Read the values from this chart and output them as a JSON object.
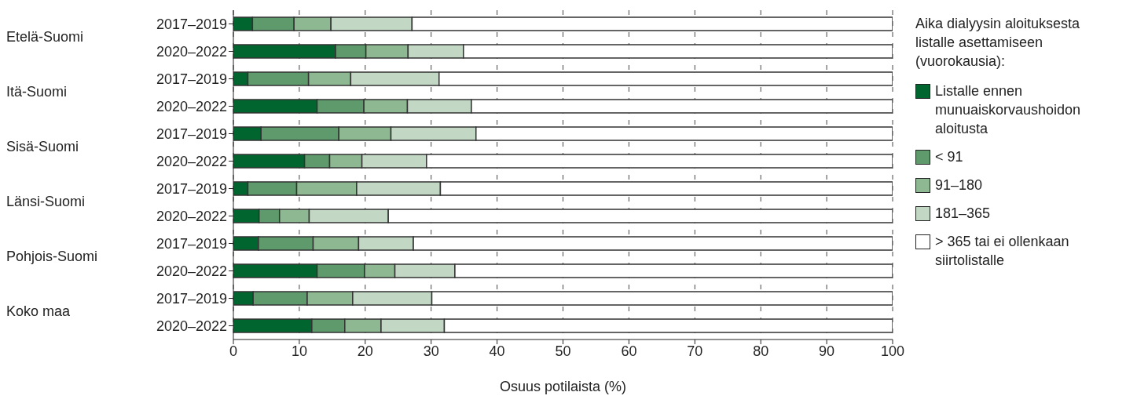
{
  "chart_data": {
    "type": "bar",
    "orientation": "horizontal",
    "stacked": true,
    "categories": [
      "2017–2019",
      "2020–2022",
      "2017–2019",
      "2020–2022",
      "2017–2019",
      "2020–2022",
      "2017–2019",
      "2020–2022",
      "2017–2019",
      "2020–2022",
      "2017–2019",
      "2020–2022"
    ],
    "annotations": [
      "Etelä-Suomi",
      "Itä-Suomi",
      "Sisä-Suomi",
      "Länsi-Suomi",
      "Pohjois-Suomi",
      "Koko maa"
    ],
    "legend_title": "Aika dialyysin aloituksesta listalle asettamiseen (vuorokausia):",
    "series": [
      {
        "name": "Listalle ennen munuaiskorvaushoidon aloitusta",
        "color": "#00652e",
        "values": [
          2.9,
          15.5,
          2.2,
          12.7,
          4.2,
          10.8,
          2.2,
          3.9,
          3.8,
          12.7,
          3.0,
          11.9
        ]
      },
      {
        "name": "< 91",
        "color": "#5e9a6b",
        "values": [
          6.3,
          4.6,
          9.2,
          7.1,
          11.8,
          3.8,
          7.4,
          3.1,
          8.3,
          7.2,
          8.2,
          5.0
        ]
      },
      {
        "name": "91–180",
        "color": "#8db891",
        "values": [
          5.6,
          6.4,
          6.4,
          6.6,
          7.9,
          4.9,
          9.1,
          4.5,
          6.9,
          4.6,
          6.9,
          5.5
        ]
      },
      {
        "name": "181–365",
        "color": "#c2d8c4",
        "values": [
          12.3,
          8.4,
          13.4,
          9.7,
          12.9,
          9.8,
          12.7,
          12.0,
          8.3,
          9.1,
          12.0,
          9.6
        ]
      },
      {
        "name": "> 365 tai ei ollenkaan siirtolistalle",
        "color": "#ffffff",
        "values": [
          72.9,
          65.1,
          68.8,
          63.9,
          63.2,
          70.7,
          68.6,
          76.5,
          72.7,
          66.4,
          69.9,
          68.0
        ]
      }
    ],
    "xlabel": "Osuus potilaista (%)",
    "xlim": [
      0,
      100
    ],
    "xticks": [
      0,
      10,
      20,
      30,
      40,
      50,
      60,
      70,
      80,
      90,
      100
    ],
    "grid": "x",
    "legend": "right"
  }
}
